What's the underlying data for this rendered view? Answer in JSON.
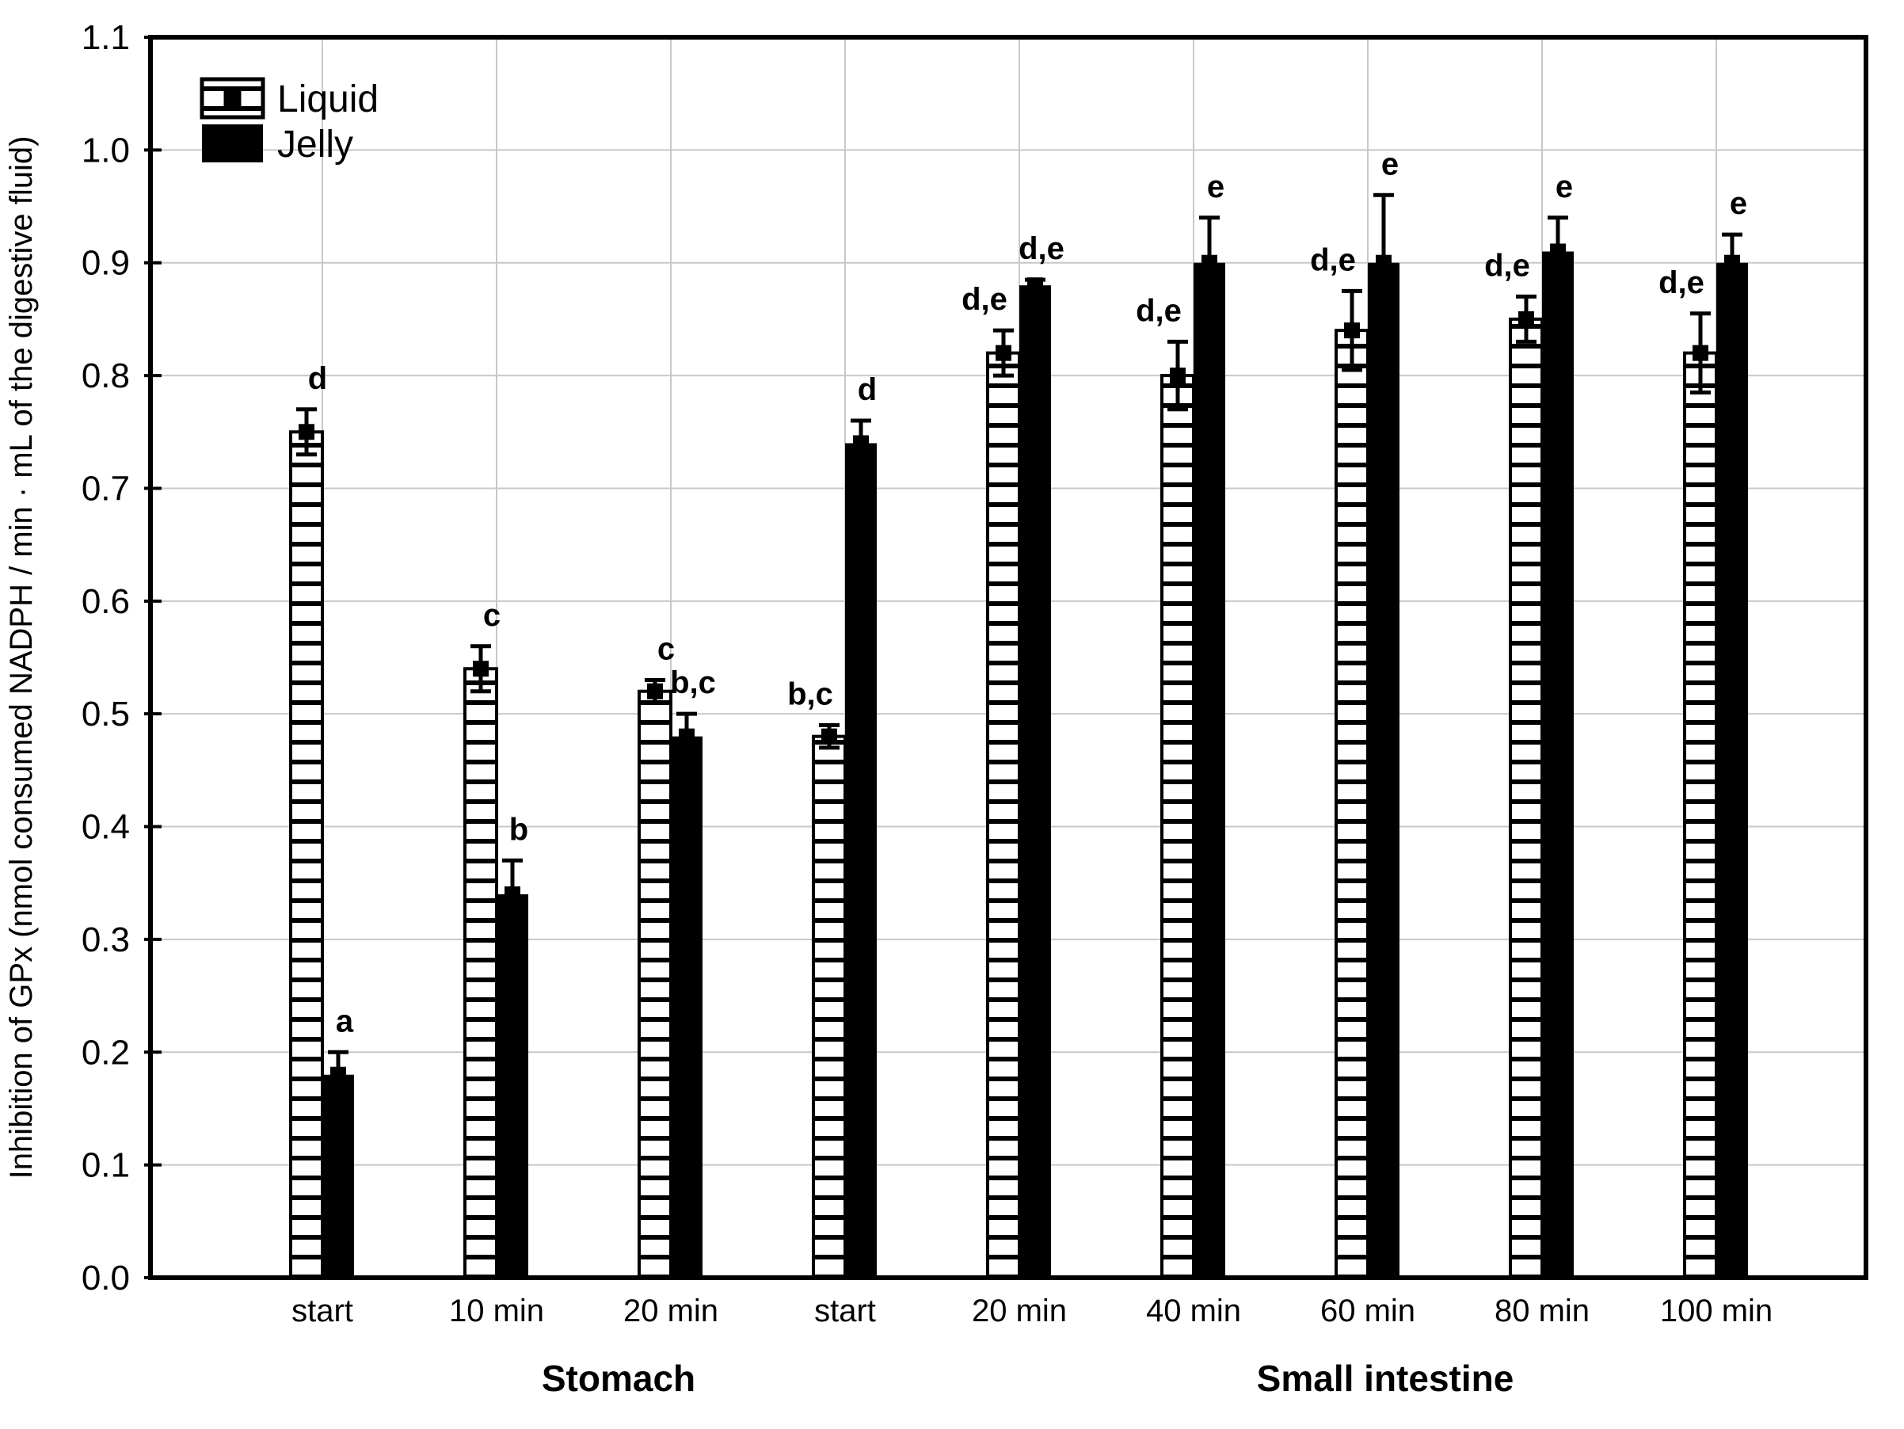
{
  "chart_data": {
    "type": "bar",
    "title": "",
    "xlabel": "",
    "ylabel": "Inhibition of GPx (nmol consumed NADPH / min · mL of the digestive fluid)",
    "ylim": [
      0.0,
      1.1
    ],
    "ytick_step": 0.1,
    "ytick_labels": [
      "0.0",
      "0.1",
      "0.2",
      "0.3",
      "0.4",
      "0.5",
      "0.6",
      "0.7",
      "0.8",
      "0.9",
      "1.0",
      "1.1"
    ],
    "grid": true,
    "categories": [
      "start",
      "10 min",
      "20 min",
      "start",
      "20 min",
      "40 min",
      "60 min",
      "80 min",
      "100 min"
    ],
    "x_groups": [
      {
        "label": "Stomach",
        "span": [
          0,
          2
        ],
        "center_category": 1.7
      },
      {
        "label": "Small intestine",
        "span": [
          3,
          8
        ],
        "center_category": 6.1
      }
    ],
    "series": [
      {
        "name": "Liquid",
        "pattern": "horizontal-hatch",
        "values": [
          0.75,
          0.54,
          0.52,
          0.48,
          0.82,
          0.8,
          0.84,
          0.85,
          0.82
        ],
        "errors": [
          0.02,
          0.02,
          0.01,
          0.01,
          0.02,
          0.03,
          0.035,
          0.02,
          0.035
        ],
        "letters": [
          "d",
          "c",
          "c",
          "b,c",
          "d,e",
          "d,e",
          "d,e",
          "d,e",
          "d,e"
        ]
      },
      {
        "name": "Jelly",
        "pattern": "solid-black",
        "values": [
          0.18,
          0.34,
          0.48,
          0.74,
          0.88,
          0.9,
          0.9,
          0.91,
          0.9
        ],
        "errors": [
          0.02,
          0.03,
          0.02,
          0.02,
          0.005,
          0.04,
          0.06,
          0.03,
          0.025
        ],
        "letters": [
          "a",
          "b",
          "b,c",
          "d",
          "d,e",
          "e",
          "e",
          "e",
          "e"
        ]
      }
    ],
    "legend": {
      "position": "top-left",
      "items": [
        {
          "label": "Liquid",
          "swatch": "hatched-with-marker"
        },
        {
          "label": "Jelly",
          "swatch": "solid-black"
        }
      ]
    },
    "error_bars": "mean marker with whisker caps",
    "colors": {
      "ink": "#000000",
      "grid": "#c8c8c8",
      "background": "#ffffff"
    }
  }
}
